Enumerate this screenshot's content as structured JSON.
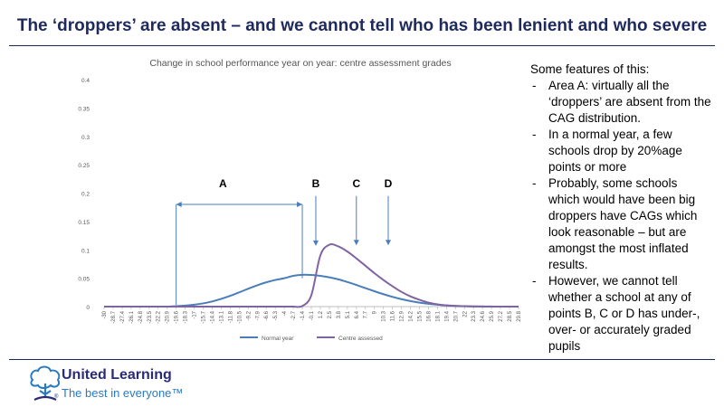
{
  "page": {
    "title": "The ‘droppers’ are absent – and we cannot tell who has been lenient and who severe"
  },
  "notes": {
    "heading": "Some features of this:",
    "items": [
      "Area A: virtually all the ‘droppers’ are absent from the CAG distribution.",
      "In a normal year, a few schools drop by 20%age points or more",
      "Probably, some schools which would have been big droppers have CAGs which look reasonable – but are amongst the most inflated results.",
      "However, we cannot tell whether a school at any of points B, C or D has under-, over- or accurately graded pupils"
    ]
  },
  "annotations": {
    "A": "A",
    "B": "B",
    "C": "C",
    "D": "D"
  },
  "logo": {
    "name": "United Learning",
    "tagline": "The best in everyone™",
    "mark": "®"
  },
  "colors": {
    "title": "#1f2a5c",
    "normal": "#4a7ebb",
    "cag": "#8064a2",
    "annotation": "#4a7ebb"
  },
  "chart_data": {
    "type": "line",
    "title": "Change in school performance year on year: centre assessment grades",
    "ylim": [
      0,
      0.4
    ],
    "yticks": [
      "0",
      "0.05",
      "0.1",
      "0.15",
      "0.2",
      "0.25",
      "0.3",
      "0.35",
      "0.4"
    ],
    "x": [
      "-30",
      "-28.7",
      "-27.4",
      "-26.1",
      "-24.8",
      "-23.5",
      "-22.2",
      "-20.9",
      "-19.6",
      "-18.3",
      "-17",
      "-15.7",
      "-14.4",
      "-13.1",
      "-11.8",
      "-10.5",
      "-9.2",
      "-7.9",
      "-6.6",
      "-5.3",
      "-4",
      "-2.7",
      "-1.4",
      "-0.1",
      "1.2",
      "2.5",
      "3.8",
      "5.1",
      "6.4",
      "7.7",
      "9",
      "10.3",
      "11.6",
      "12.9",
      "14.2",
      "15.5",
      "16.8",
      "18.1",
      "19.4",
      "20.7",
      "22",
      "23.3",
      "24.6",
      "25.9",
      "27.2",
      "28.5",
      "29.8"
    ],
    "series": [
      {
        "name": "Normal year",
        "values": [
          0,
          0,
          0,
          0,
          0,
          0,
          0,
          0,
          0.0008,
          0.0018,
          0.0033,
          0.0057,
          0.0091,
          0.0136,
          0.019,
          0.0251,
          0.0315,
          0.0376,
          0.0428,
          0.0469,
          0.05,
          0.0542,
          0.056,
          0.0557,
          0.0542,
          0.0516,
          0.048,
          0.0433,
          0.0381,
          0.0326,
          0.0271,
          0.0219,
          0.0172,
          0.0131,
          0.0097,
          0.007,
          0.0049,
          0.0033,
          0.0021,
          0.0013,
          0.0008,
          0.0004,
          0.0002,
          0.0001,
          0,
          0,
          0
        ]
      },
      {
        "name": "Centre assessed",
        "values": [
          0,
          0,
          0,
          0,
          0,
          0,
          0,
          0,
          0,
          0,
          0,
          0,
          0,
          0,
          0,
          0,
          0,
          0,
          0,
          0,
          0,
          0,
          0.001,
          0.02,
          0.09,
          0.109,
          0.106,
          0.097,
          0.085,
          0.072,
          0.059,
          0.047,
          0.036,
          0.026,
          0.018,
          0.012,
          0.007,
          0.004,
          0.002,
          0.001,
          0.0005,
          0.0002,
          0.0001,
          0,
          0,
          0,
          0
        ]
      }
    ],
    "legend_position": "bottom",
    "grid": false
  }
}
